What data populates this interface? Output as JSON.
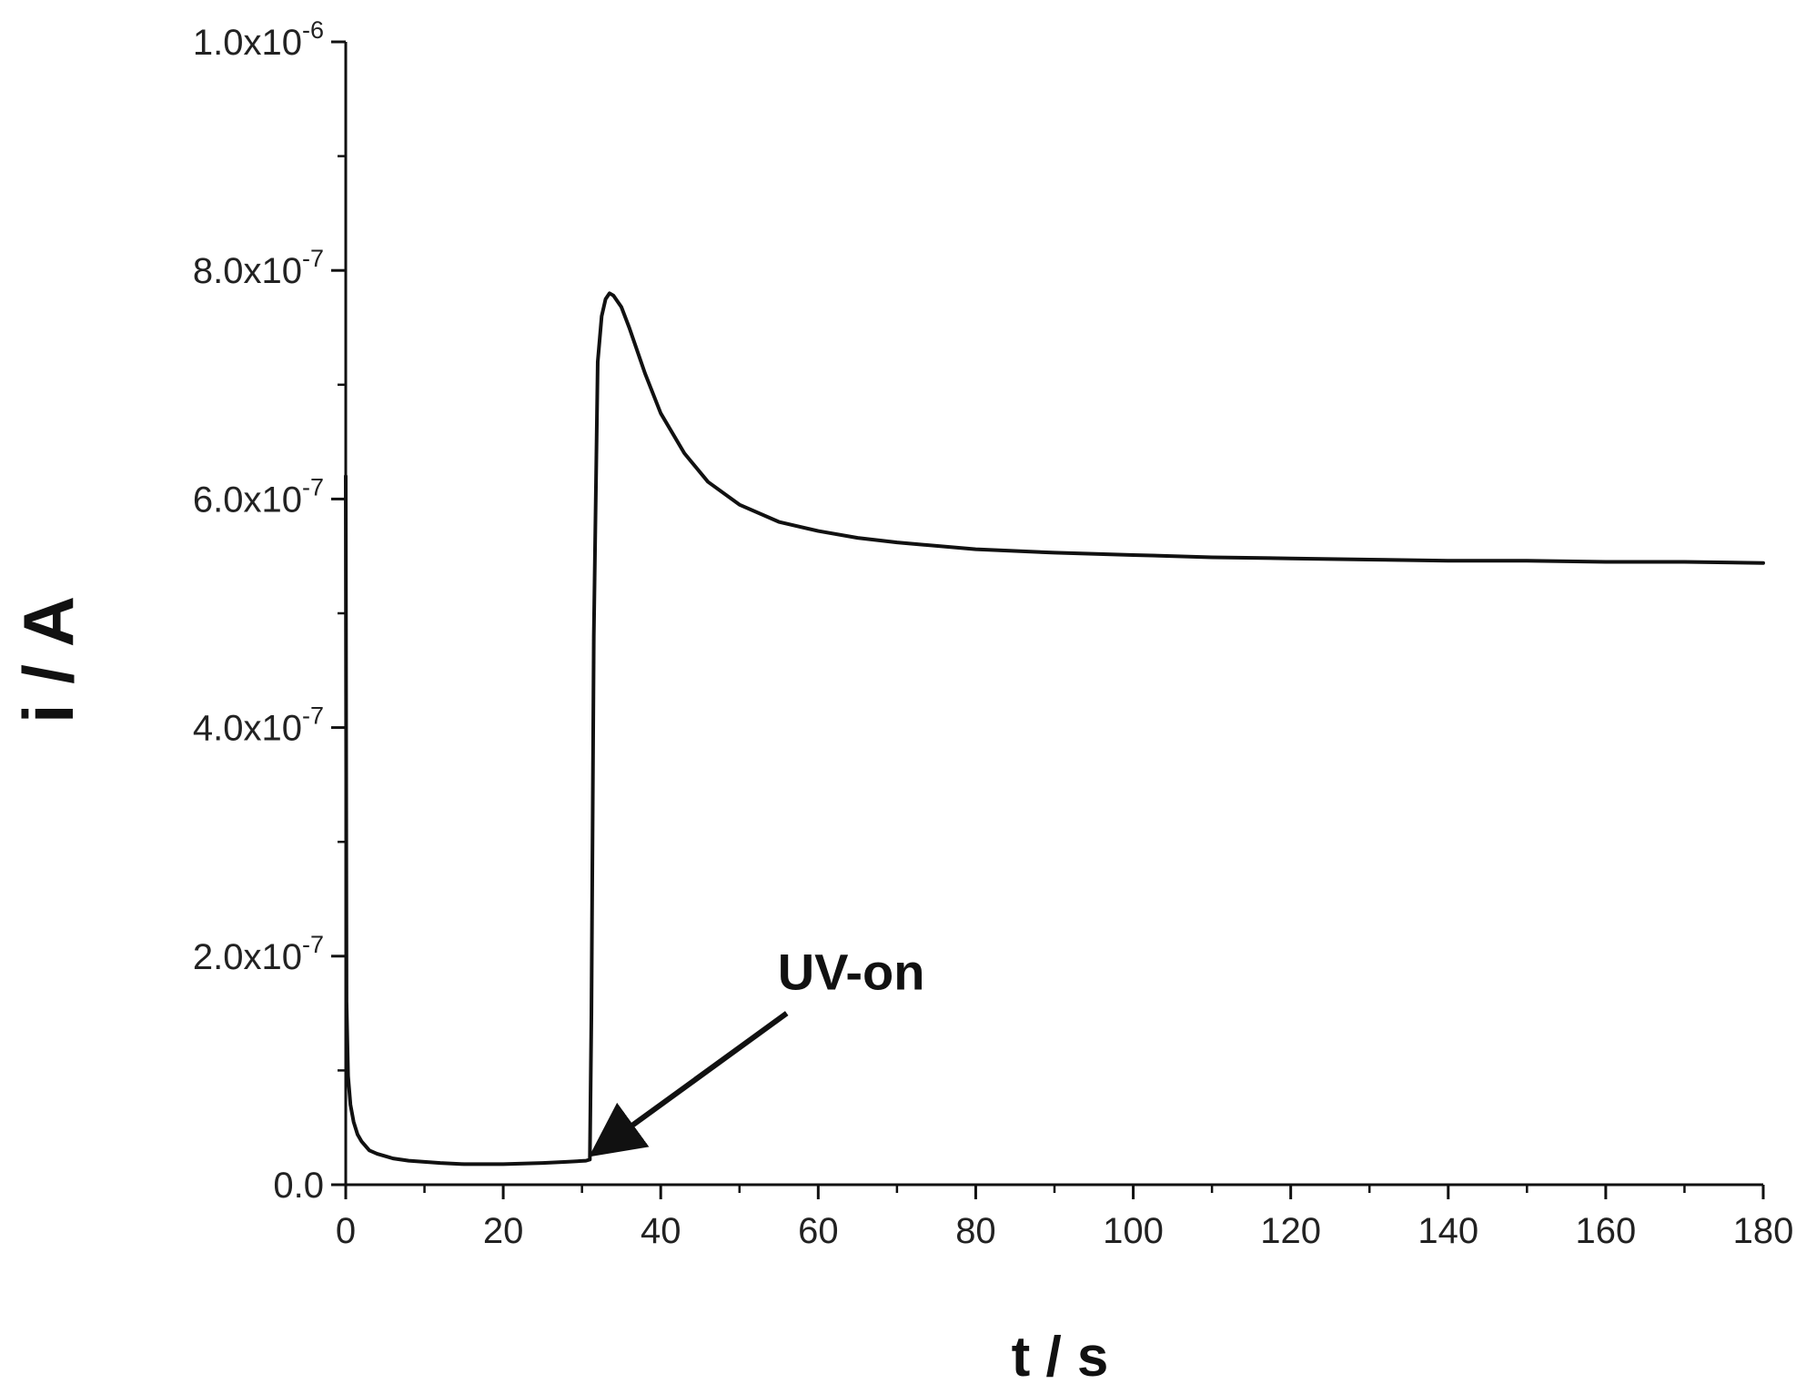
{
  "chart_data": {
    "type": "line",
    "title": "",
    "xlabel": "t / s",
    "ylabel": "i / A",
    "xlim": [
      0,
      180
    ],
    "ylim": [
      0,
      1e-06
    ],
    "grid": false,
    "legend": "none",
    "x_ticks": [
      {
        "value": 0,
        "label": "0"
      },
      {
        "value": 20,
        "label": "20"
      },
      {
        "value": 40,
        "label": "40"
      },
      {
        "value": 60,
        "label": "60"
      },
      {
        "value": 80,
        "label": "80"
      },
      {
        "value": 100,
        "label": "100"
      },
      {
        "value": 120,
        "label": "120"
      },
      {
        "value": 140,
        "label": "140"
      },
      {
        "value": 160,
        "label": "160"
      },
      {
        "value": 180,
        "label": "180"
      }
    ],
    "y_ticks": [
      {
        "value": 0,
        "label": "0.0",
        "exp": ""
      },
      {
        "value": 2e-07,
        "label": "2.0x10",
        "exp": "-7"
      },
      {
        "value": 4e-07,
        "label": "4.0x10",
        "exp": "-7"
      },
      {
        "value": 6e-07,
        "label": "6.0x10",
        "exp": "-7"
      },
      {
        "value": 8e-07,
        "label": "8.0x10",
        "exp": "-7"
      },
      {
        "value": 1e-06,
        "label": "1.0x10",
        "exp": "-6"
      }
    ],
    "series": [
      {
        "color": "#111111",
        "x": [
          0,
          0.1,
          0.3,
          0.6,
          1.0,
          1.5,
          2.0,
          3.0,
          4.0,
          5.0,
          6.0,
          8.0,
          10.0,
          12.0,
          15.0,
          18.0,
          20.0,
          25.0,
          28.0,
          30.5,
          31.0,
          31.2,
          31.5,
          32.0,
          32.5,
          33.0,
          33.5,
          34.0,
          35.0,
          36.0,
          38.0,
          40.0,
          43.0,
          46.0,
          50.0,
          55.0,
          60.0,
          65.0,
          70.0,
          80.0,
          90.0,
          100.0,
          110.0,
          120.0,
          130.0,
          140.0,
          150.0,
          160.0,
          170.0,
          180.0
        ],
        "y": [
          6.2e-07,
          1.6e-07,
          9.5e-08,
          7e-08,
          5.5e-08,
          4.4e-08,
          3.8e-08,
          3e-08,
          2.7e-08,
          2.5e-08,
          2.3e-08,
          2.1e-08,
          2e-08,
          1.9e-08,
          1.8e-08,
          1.8e-08,
          1.8e-08,
          1.9e-08,
          2e-08,
          2.1e-08,
          2.2e-08,
          1.5e-07,
          4.8e-07,
          7.2e-07,
          7.6e-07,
          7.75e-07,
          7.8e-07,
          7.78e-07,
          7.68e-07,
          7.5e-07,
          7.1e-07,
          6.75e-07,
          6.4e-07,
          6.15e-07,
          5.95e-07,
          5.8e-07,
          5.72e-07,
          5.66e-07,
          5.62e-07,
          5.56e-07,
          5.53e-07,
          5.51e-07,
          5.49e-07,
          5.48e-07,
          5.47e-07,
          5.46e-07,
          5.46e-07,
          5.45e-07,
          5.45e-07,
          5.44e-07
        ]
      }
    ],
    "annotation": {
      "text": "UV-on",
      "arrow_from": [
        56,
        1.5e-07
      ],
      "arrow_to": [
        32,
        3e-08
      ]
    }
  }
}
